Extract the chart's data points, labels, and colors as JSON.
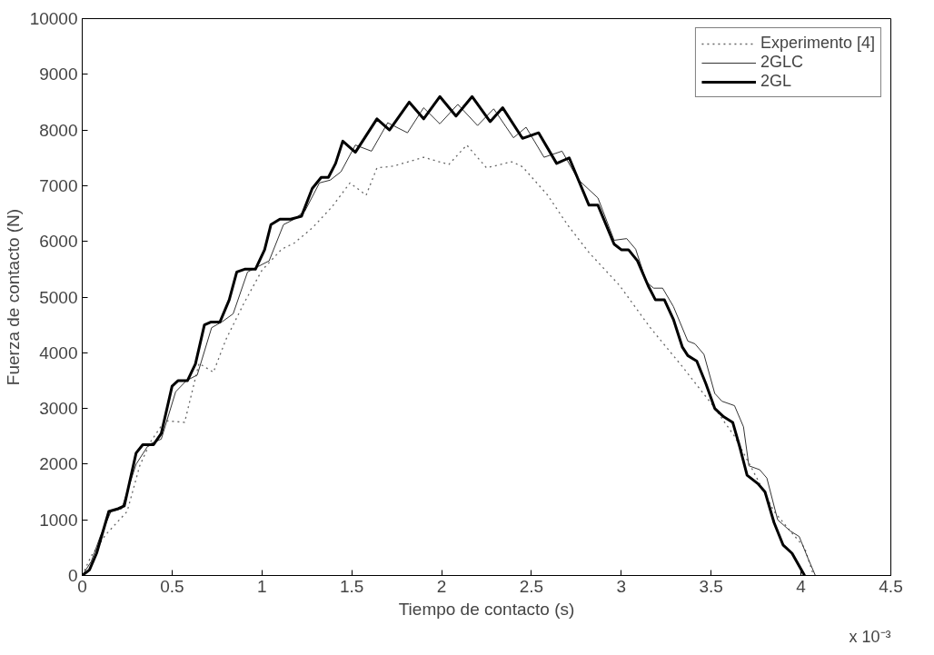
{
  "chart_data": {
    "type": "line",
    "xlabel": "Tiempo de contacto (s)",
    "ylabel": "Fuerza de contacto (N)",
    "xlim": [
      0,
      4.5
    ],
    "xticks": [
      0,
      0.5,
      1,
      1.5,
      2,
      2.5,
      3,
      3.5,
      4,
      4.5
    ],
    "ylim": [
      0,
      10000
    ],
    "yticks": [
      0,
      1000,
      2000,
      3000,
      4000,
      5000,
      6000,
      7000,
      8000,
      9000,
      10000
    ],
    "grid": false,
    "legend": "top right",
    "marker": "none",
    "annotations": [
      "x 10⁻³"
    ],
    "series": [
      {
        "name": "Experimento [4]",
        "color": "#666666",
        "line_style": "dotted",
        "x": [
          0,
          0.05,
          0.13,
          0.25,
          0.32,
          0.38,
          0.46,
          0.57,
          0.65,
          0.73,
          0.8,
          0.9,
          1.0,
          1.11,
          1.18,
          1.28,
          1.39,
          1.49,
          1.58,
          1.64,
          1.73,
          1.9,
          2.04,
          2.14,
          2.25,
          2.39,
          2.45,
          2.59,
          2.7,
          2.82,
          2.99,
          3.16,
          3.34,
          3.51,
          3.63,
          3.73,
          3.85,
          3.94,
          4.02,
          4.07
        ],
        "values": [
          0,
          350,
          730,
          1150,
          1970,
          2400,
          2780,
          2750,
          3810,
          3650,
          4240,
          4890,
          5480,
          5860,
          5970,
          6240,
          6620,
          7050,
          6830,
          7320,
          7350,
          7510,
          7380,
          7730,
          7320,
          7430,
          7340,
          6830,
          6300,
          5800,
          5210,
          4455,
          3750,
          3050,
          2500,
          1900,
          1150,
          800,
          500,
          0
        ]
      },
      {
        "name": "2GLC",
        "color": "#333333",
        "line_style": "solid",
        "x": [
          0,
          0.05,
          0.1,
          0.16,
          0.22,
          0.3,
          0.37,
          0.44,
          0.52,
          0.58,
          0.64,
          0.72,
          0.78,
          0.84,
          0.92,
          0.98,
          1.04,
          1.12,
          1.18,
          1.24,
          1.32,
          1.38,
          1.44,
          1.52,
          1.61,
          1.7,
          1.81,
          1.9,
          1.99,
          2.09,
          2.2,
          2.29,
          2.4,
          2.47,
          2.57,
          2.67,
          2.76,
          2.87,
          2.96,
          3.03,
          3.08,
          3.14,
          3.18,
          3.23,
          3.29,
          3.37,
          3.41,
          3.46,
          3.52,
          3.56,
          3.63,
          3.68,
          3.71,
          3.77,
          3.81,
          3.87,
          3.94,
          3.99,
          4.04,
          4.08
        ],
        "values": [
          0,
          250,
          700,
          1150,
          1200,
          2000,
          2350,
          2450,
          3300,
          3500,
          3600,
          4450,
          4560,
          4700,
          5450,
          5550,
          5650,
          6300,
          6400,
          6550,
          7050,
          7100,
          7250,
          7730,
          7620,
          8130,
          7950,
          8400,
          8110,
          8460,
          8080,
          8380,
          7860,
          8050,
          7510,
          7620,
          7110,
          6780,
          6020,
          6050,
          5860,
          5270,
          5160,
          5160,
          4830,
          4210,
          4160,
          3970,
          3270,
          3130,
          3050,
          2670,
          1970,
          1900,
          1750,
          1000,
          800,
          700,
          300,
          0
        ]
      },
      {
        "name": "2GL",
        "color": "#000000",
        "line_style": "solid",
        "x": [
          0,
          0.04,
          0.08,
          0.148,
          0.2,
          0.234,
          0.3,
          0.337,
          0.397,
          0.44,
          0.5,
          0.534,
          0.586,
          0.63,
          0.68,
          0.715,
          0.766,
          0.818,
          0.86,
          0.904,
          0.964,
          1.015,
          1.05,
          1.1,
          1.16,
          1.22,
          1.28,
          1.33,
          1.37,
          1.41,
          1.45,
          1.52,
          1.64,
          1.71,
          1.82,
          1.9,
          1.99,
          2.08,
          2.17,
          2.27,
          2.34,
          2.45,
          2.54,
          2.64,
          2.71,
          2.82,
          2.87,
          2.96,
          3.0,
          3.04,
          3.09,
          3.15,
          3.19,
          3.24,
          3.29,
          3.34,
          3.37,
          3.42,
          3.47,
          3.52,
          3.57,
          3.62,
          3.66,
          3.7,
          3.76,
          3.8,
          3.85,
          3.9,
          3.95,
          4.02
        ],
        "values": [
          0,
          100,
          400,
          1150,
          1200,
          1250,
          2200,
          2350,
          2350,
          2550,
          3400,
          3500,
          3500,
          3800,
          4500,
          4550,
          4550,
          4950,
          5450,
          5500,
          5500,
          5850,
          6300,
          6400,
          6400,
          6450,
          6950,
          7150,
          7150,
          7400,
          7800,
          7600,
          8200,
          8000,
          8500,
          8200,
          8600,
          8250,
          8600,
          8150,
          8400,
          7850,
          7950,
          7400,
          7500,
          6650,
          6650,
          5950,
          5850,
          5850,
          5650,
          5200,
          4950,
          4950,
          4600,
          4100,
          3950,
          3850,
          3450,
          3000,
          2850,
          2750,
          2300,
          1800,
          1650,
          1500,
          950,
          550,
          400,
          0
        ]
      }
    ]
  }
}
